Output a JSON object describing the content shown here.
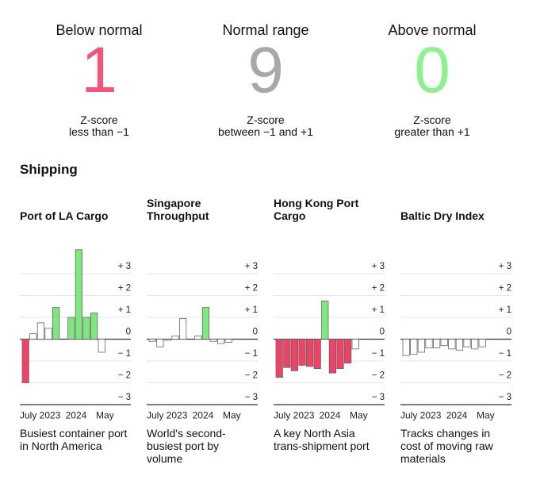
{
  "summary": [
    {
      "label": "Below normal",
      "count": 1,
      "color": "#f2557a",
      "desc": [
        "Z-score",
        "less than −1"
      ]
    },
    {
      "label": "Normal range",
      "count": 9,
      "color": "#a8a8a8",
      "desc": [
        "Z-score",
        "between −1 and +1"
      ]
    },
    {
      "label": "Above normal",
      "count": 0,
      "color": "#8ef08e",
      "desc": [
        "Z-score",
        "greater than +1"
      ]
    }
  ],
  "section": "Shipping",
  "chart_data": [
    {
      "type": "bar",
      "title": "Port of LA Cargo",
      "description": "Busiest container port in North America",
      "categories": [
        "July 2023",
        null,
        null,
        null,
        null,
        null,
        "2024",
        null,
        null,
        null,
        "May"
      ],
      "values": [
        -2.0,
        0.25,
        0.75,
        0.5,
        1.45,
        0.0,
        1.0,
        4.1,
        1.0,
        1.2,
        -0.6
      ],
      "colors": [
        "#ee4266",
        "#ffffff",
        "#ffffff",
        "#ffffff",
        "#7ee87f",
        "#ffffff",
        "#7ee87f",
        "#7ee87f",
        "#7ee87f",
        "#7ee87f",
        "#ffffff"
      ],
      "ylim": [
        -3.2,
        4.2
      ],
      "yticks": [
        {
          "value": 3,
          "label": "+ 3"
        },
        {
          "value": 2,
          "label": "+ 2"
        },
        {
          "value": 1,
          "label": "+ 1"
        },
        0,
        {
          "value": -1,
          "label": "− 1"
        },
        {
          "value": -2,
          "label": "− 2"
        },
        {
          "value": -3,
          "label": "− 3"
        }
      ]
    },
    {
      "type": "bar",
      "title": "Singapore Throughput",
      "description": "World's second-busiest port by volume",
      "categories": [
        "July 2023",
        null,
        null,
        null,
        null,
        null,
        "2024",
        null,
        null,
        null,
        "May"
      ],
      "values": [
        -0.1,
        -0.35,
        -0.05,
        0.15,
        0.95,
        0.0,
        0.15,
        1.45,
        -0.1,
        -0.2,
        -0.15
      ],
      "colors": [
        "#ffffff",
        "#ffffff",
        "#ffffff",
        "#ffffff",
        "#ffffff",
        "#ffffff",
        "#ffffff",
        "#7ee87f",
        "#ffffff",
        "#ffffff",
        "#ffffff"
      ],
      "ylim": [
        -3.2,
        4.2
      ],
      "yticks": [
        {
          "value": 3,
          "label": "+ 3"
        },
        {
          "value": 2,
          "label": "+ 2"
        },
        {
          "value": 1,
          "label": "+ 1"
        },
        0,
        {
          "value": -1,
          "label": "− 1"
        },
        {
          "value": -2,
          "label": "− 2"
        },
        {
          "value": -3,
          "label": "− 3"
        }
      ]
    },
    {
      "type": "bar",
      "title": "Hong Kong Port Cargo",
      "description": "A key North Asia trans-shipment port",
      "categories": [
        "July 2023",
        null,
        null,
        null,
        null,
        null,
        "2024",
        null,
        null,
        null,
        "May"
      ],
      "values": [
        -1.75,
        -1.3,
        -1.45,
        -1.2,
        -1.25,
        -1.35,
        1.75,
        -1.55,
        -1.35,
        -1.1,
        -0.45
      ],
      "colors": [
        "#ee4266",
        "#ee4266",
        "#ee4266",
        "#ee4266",
        "#ee4266",
        "#ee4266",
        "#7ee87f",
        "#ee4266",
        "#ee4266",
        "#ee4266",
        "#ffffff"
      ],
      "ylim": [
        -3.2,
        4.2
      ],
      "yticks": [
        {
          "value": 3,
          "label": "+ 3"
        },
        {
          "value": 2,
          "label": "+ 2"
        },
        {
          "value": 1,
          "label": "+ 1"
        },
        0,
        {
          "value": -1,
          "label": "− 1"
        },
        {
          "value": -2,
          "label": "− 2"
        },
        {
          "value": -3,
          "label": "− 3"
        }
      ]
    },
    {
      "type": "bar",
      "title": "Baltic Dry Index",
      "description": "Tracks changes in cost of moving raw materials",
      "categories": [
        "July 2023",
        null,
        null,
        null,
        null,
        null,
        "2024",
        null,
        null,
        null,
        "May"
      ],
      "values": [
        -0.75,
        -0.7,
        -0.6,
        -0.4,
        -0.4,
        -0.3,
        -0.45,
        -0.5,
        -0.35,
        -0.45,
        -0.35
      ],
      "colors": [
        "#ffffff",
        "#ffffff",
        "#ffffff",
        "#ffffff",
        "#ffffff",
        "#ffffff",
        "#ffffff",
        "#ffffff",
        "#ffffff",
        "#ffffff",
        "#ffffff"
      ],
      "ylim": [
        -3.2,
        4.2
      ],
      "yticks": [
        {
          "value": 3,
          "label": "+ 3"
        },
        {
          "value": 2,
          "label": "+ 2"
        },
        {
          "value": 1,
          "label": "+ 1"
        },
        0,
        {
          "value": -1,
          "label": "− 1"
        },
        {
          "value": -2,
          "label": "− 2"
        },
        {
          "value": -3,
          "label": "− 3"
        }
      ]
    }
  ]
}
